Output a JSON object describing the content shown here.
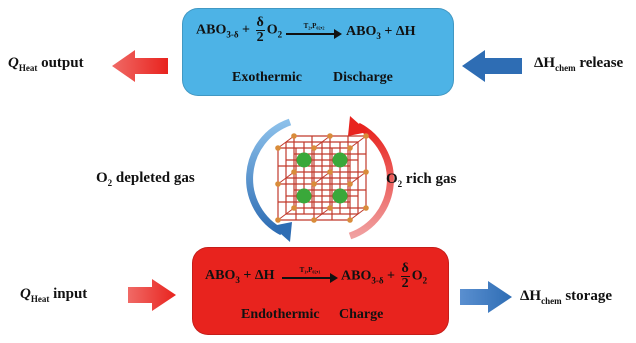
{
  "discharge": {
    "equation_lhs": "ABO",
    "equation_lhs_sub": "3-δ",
    "plus": "+",
    "frac_num": "δ",
    "frac_den": "2",
    "o2": "O",
    "o2_sub": "2",
    "arrow_cond": "T₂,P₀₂,₂",
    "equation_rhs": "ABO",
    "equation_rhs_sub": "3",
    "rhs_extra": "+ ΔH",
    "mode_label": "Exothermic",
    "process_label": "Discharge"
  },
  "charge": {
    "equation_lhs": "ABO",
    "equation_lhs_sub": "3",
    "lhs_extra": "+ ΔH",
    "arrow_cond": "T₁,P₀₂,₁",
    "equation_rhs": "ABO",
    "equation_rhs_sub": "3-δ",
    "plus": "+",
    "frac_num": "δ",
    "frac_den": "2",
    "o2": "O",
    "o2_sub": "2",
    "mode_label": "Endothermic",
    "process_label": "Charge"
  },
  "left": {
    "q_output_q": "Q",
    "q_output_sub": "Heat",
    "q_output_text": " output",
    "o2_depleted_o": "O",
    "o2_depleted_sub": "2",
    "o2_depleted_text": " depleted gas",
    "q_input_q": "Q",
    "q_input_sub": "Heat",
    "q_input_text": " input"
  },
  "right": {
    "release_h": "ΔH",
    "release_sub": "chem",
    "release_text": " release",
    "o2_rich_o": "O",
    "o2_rich_sub": "2",
    "o2_rich_text": " rich gas",
    "storage_h": "ΔH",
    "storage_sub": "chem",
    "storage_text": " storage"
  },
  "colors": {
    "discharge_box": "#4db3e6",
    "charge_box": "#e8231e",
    "red_arrow": "#e8231e",
    "blue_arrow": "#2e6db4",
    "crystal_red": "#c0392b",
    "crystal_green": "#3aa83a",
    "crystal_orange": "#d98c3a"
  },
  "icons": {
    "cycle": "redox-cycle-arrows",
    "crystal": "perovskite-crystal-lattice"
  }
}
